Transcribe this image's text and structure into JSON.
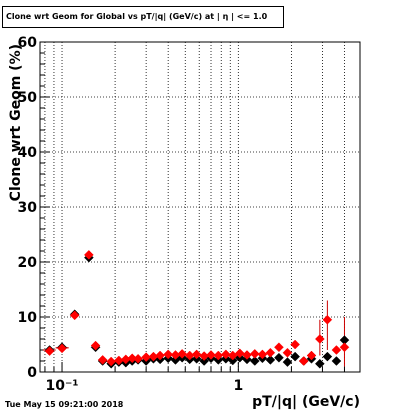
{
  "chart_data": {
    "type": "scatter",
    "title": "Clone wrt Geom for Global vs pT/|q| (GeV/c) at | η | <= 1.0",
    "xlabel": "pT/|q| (GeV/c)",
    "ylabel": "Clone wrt Geom (%)",
    "xscale": "log",
    "xlim": [
      0.075,
      4.9
    ],
    "ylim": [
      0,
      60
    ],
    "yticks": [
      0,
      10,
      20,
      30,
      40,
      50,
      60
    ],
    "xtick_labels": [
      "10⁻¹",
      "1"
    ],
    "xtick_values": [
      0.1,
      1
    ],
    "grid": true,
    "colors": {
      "series_black": "#000000",
      "series_red": "#ff0000"
    },
    "series": [
      {
        "color": "#000000",
        "marker": "diamond",
        "points": [
          {
            "x": 0.085,
            "y": 4.0
          },
          {
            "x": 0.1,
            "y": 4.5
          },
          {
            "x": 0.118,
            "y": 10.5
          },
          {
            "x": 0.142,
            "y": 20.8
          },
          {
            "x": 0.155,
            "y": 4.5
          },
          {
            "x": 0.17,
            "y": 2.0
          },
          {
            "x": 0.19,
            "y": 1.5
          },
          {
            "x": 0.21,
            "y": 1.8
          },
          {
            "x": 0.23,
            "y": 1.7
          },
          {
            "x": 0.25,
            "y": 2.0
          },
          {
            "x": 0.27,
            "y": 2.2
          },
          {
            "x": 0.3,
            "y": 2.0
          },
          {
            "x": 0.33,
            "y": 2.4
          },
          {
            "x": 0.36,
            "y": 2.3
          },
          {
            "x": 0.4,
            "y": 2.5
          },
          {
            "x": 0.44,
            "y": 2.2
          },
          {
            "x": 0.48,
            "y": 2.6
          },
          {
            "x": 0.53,
            "y": 2.3
          },
          {
            "x": 0.58,
            "y": 2.4
          },
          {
            "x": 0.64,
            "y": 2.0
          },
          {
            "x": 0.7,
            "y": 2.5
          },
          {
            "x": 0.77,
            "y": 2.2
          },
          {
            "x": 0.85,
            "y": 2.4
          },
          {
            "x": 0.93,
            "y": 2.1
          },
          {
            "x": 1.02,
            "y": 2.6
          },
          {
            "x": 1.12,
            "y": 2.3
          },
          {
            "x": 1.24,
            "y": 2.0
          },
          {
            "x": 1.37,
            "y": 2.5
          },
          {
            "x": 1.52,
            "y": 2.2
          },
          {
            "x": 1.7,
            "y": 2.6
          },
          {
            "x": 1.9,
            "y": 1.8
          },
          {
            "x": 2.1,
            "y": 2.8
          },
          {
            "x": 2.35,
            "y": 2.0
          },
          {
            "x": 2.6,
            "y": 2.4
          },
          {
            "x": 2.9,
            "y": 1.5
          },
          {
            "x": 3.2,
            "y": 2.8
          },
          {
            "x": 3.6,
            "y": 2.0
          },
          {
            "x": 4.0,
            "y": 5.8
          }
        ]
      },
      {
        "color": "#ff0000",
        "marker": "diamond",
        "points": [
          {
            "x": 0.085,
            "y": 3.8
          },
          {
            "x": 0.1,
            "y": 4.3
          },
          {
            "x": 0.118,
            "y": 10.3
          },
          {
            "x": 0.142,
            "y": 21.3
          },
          {
            "x": 0.155,
            "y": 4.8
          },
          {
            "x": 0.17,
            "y": 2.2
          },
          {
            "x": 0.19,
            "y": 1.9
          },
          {
            "x": 0.21,
            "y": 2.1
          },
          {
            "x": 0.23,
            "y": 2.3
          },
          {
            "x": 0.25,
            "y": 2.5
          },
          {
            "x": 0.27,
            "y": 2.4
          },
          {
            "x": 0.3,
            "y": 2.7
          },
          {
            "x": 0.33,
            "y": 2.8
          },
          {
            "x": 0.36,
            "y": 3.0
          },
          {
            "x": 0.4,
            "y": 3.2
          },
          {
            "x": 0.44,
            "y": 3.1
          },
          {
            "x": 0.48,
            "y": 3.3
          },
          {
            "x": 0.53,
            "y": 3.0
          },
          {
            "x": 0.58,
            "y": 3.2
          },
          {
            "x": 0.64,
            "y": 2.9
          },
          {
            "x": 0.7,
            "y": 3.1
          },
          {
            "x": 0.77,
            "y": 3.0
          },
          {
            "x": 0.85,
            "y": 3.2
          },
          {
            "x": 0.93,
            "y": 3.0
          },
          {
            "x": 1.02,
            "y": 3.4
          },
          {
            "x": 1.12,
            "y": 3.1
          },
          {
            "x": 1.24,
            "y": 3.3
          },
          {
            "x": 1.37,
            "y": 3.2
          },
          {
            "x": 1.52,
            "y": 3.5
          },
          {
            "x": 1.7,
            "y": 4.5
          },
          {
            "x": 1.9,
            "y": 3.5
          },
          {
            "x": 2.1,
            "y": 5.0
          },
          {
            "x": 2.35,
            "y": 2.0
          },
          {
            "x": 2.6,
            "y": 3.0
          },
          {
            "x": 2.9,
            "y": 6.0
          },
          {
            "x": 3.2,
            "y": 9.5
          },
          {
            "x": 3.6,
            "y": 4.0
          },
          {
            "x": 4.0,
            "y": 4.5
          }
        ]
      }
    ],
    "error_bars": [
      {
        "x": 0.085,
        "xerr": [
          0.078,
          0.092
        ],
        "y": 4.0
      },
      {
        "x": 0.1,
        "xerr": [
          0.092,
          0.109
        ],
        "y": 4.4
      },
      {
        "x": 2.9,
        "yerr": [
          3.0,
          9.5
        ],
        "y": 6.0
      },
      {
        "x": 3.2,
        "yerr": [
          4.0,
          13.0
        ],
        "y": 9.5
      },
      {
        "x": 4.0,
        "yerr": [
          1.0,
          10.0
        ],
        "y": 5.8
      }
    ]
  },
  "footer": {
    "timestamp": "Tue May 15 09:21:00 2018"
  }
}
